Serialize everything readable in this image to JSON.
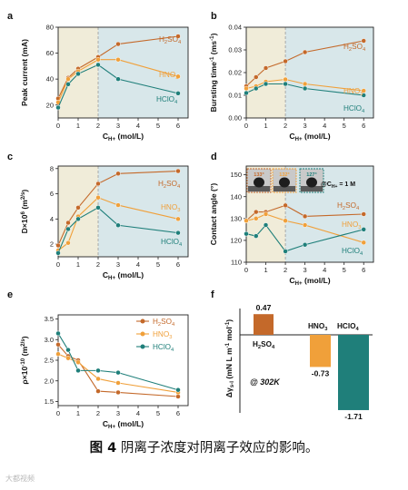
{
  "colors": {
    "H2SO4": "#c4692a",
    "HNO3": "#f0a03a",
    "HClO4": "#1f7f7a",
    "bg_left": "#f0ecd9",
    "bg_right": "#d8e7ea"
  },
  "caption": {
    "prefix": "图 4",
    "text": "阴离子浓度对阴离子效应的影响。"
  },
  "watermark": "大都视频",
  "chart_data": [
    {
      "panel": "a",
      "type": "line",
      "xlabel": "C_H+ (mol/L)",
      "ylabel": "Peak current (mA)",
      "xlim": [
        0,
        6.5
      ],
      "ylim": [
        10,
        80
      ],
      "xticks": [
        0,
        1,
        2,
        3,
        4,
        5,
        6
      ],
      "yticks": [
        20,
        40,
        60,
        80
      ],
      "series": [
        {
          "name": "H2SO4",
          "x": [
            0,
            0.5,
            1,
            2,
            3,
            6
          ],
          "values": [
            25,
            41,
            48,
            57,
            67,
            73
          ]
        },
        {
          "name": "HNO3",
          "x": [
            0,
            0.5,
            1,
            2,
            3,
            6
          ],
          "values": [
            22,
            40,
            46,
            55,
            55,
            42
          ]
        },
        {
          "name": "HClO4",
          "x": [
            0,
            0.5,
            1,
            2,
            3,
            6
          ],
          "values": [
            18,
            36,
            44,
            51,
            40,
            29
          ]
        }
      ]
    },
    {
      "panel": "b",
      "type": "line",
      "xlabel": "C_H+ (mol/L)",
      "ylabel": "Bursting time^-1 (ms^-1)",
      "xlim": [
        0,
        6.5
      ],
      "ylim": [
        0.0,
        0.04
      ],
      "xticks": [
        0,
        1,
        2,
        3,
        4,
        5,
        6
      ],
      "yticks": [
        0.0,
        0.01,
        0.02,
        0.03,
        0.04
      ],
      "yticklabels": [
        "0.00",
        "0.01",
        "0.02",
        "0.03",
        "0.04"
      ],
      "series": [
        {
          "name": "H2SO4",
          "x": [
            0,
            0.5,
            1,
            2,
            3,
            6
          ],
          "values": [
            0.014,
            0.018,
            0.022,
            0.025,
            0.029,
            0.034
          ]
        },
        {
          "name": "HNO3",
          "x": [
            0,
            0.5,
            1,
            2,
            3,
            6
          ],
          "values": [
            0.013,
            0.014,
            0.016,
            0.017,
            0.015,
            0.012
          ]
        },
        {
          "name": "HClO4",
          "x": [
            0,
            0.5,
            1,
            2,
            3,
            6
          ],
          "values": [
            0.011,
            0.013,
            0.015,
            0.015,
            0.013,
            0.01
          ]
        }
      ]
    },
    {
      "panel": "c",
      "type": "line",
      "xlabel": "C_H+ (mol/L)",
      "ylabel": "D×10^6 (m^2/s)",
      "xlim": [
        0,
        6.5
      ],
      "ylim": [
        1,
        8.2
      ],
      "xticks": [
        0,
        1,
        2,
        3,
        4,
        5,
        6
      ],
      "yticks": [
        2,
        4,
        6,
        8
      ],
      "series": [
        {
          "name": "H2SO4",
          "x": [
            0,
            0.5,
            1,
            2,
            3,
            6
          ],
          "values": [
            1.9,
            3.7,
            4.9,
            6.8,
            7.6,
            7.8
          ]
        },
        {
          "name": "HNO3",
          "x": [
            0,
            0.5,
            1,
            2,
            3,
            6
          ],
          "values": [
            1.5,
            2.1,
            4.2,
            5.7,
            5.1,
            4.0
          ]
        },
        {
          "name": "HClO4",
          "x": [
            0,
            0.5,
            1,
            2,
            3,
            6
          ],
          "values": [
            1.3,
            3.2,
            4.0,
            4.9,
            3.5,
            2.9
          ]
        }
      ]
    },
    {
      "panel": "d",
      "type": "line",
      "xlabel": "C_H+ (mol/L)",
      "ylabel": "Contact angle (°)",
      "xlim": [
        0,
        6.5
      ],
      "ylim": [
        110,
        154
      ],
      "xticks": [
        0,
        1,
        2,
        3,
        4,
        5,
        6
      ],
      "yticks": [
        110,
        120,
        130,
        140,
        150
      ],
      "inset_angles": [
        "133°",
        "132°",
        "127°"
      ],
      "inset_label": "@C_H+ = 1 M",
      "series": [
        {
          "name": "H2SO4",
          "x": [
            0,
            0.5,
            1,
            2,
            3,
            6
          ],
          "values": [
            129,
            133,
            133,
            136,
            131,
            132
          ]
        },
        {
          "name": "HNO3",
          "x": [
            0,
            0.5,
            1,
            2,
            3,
            6
          ],
          "values": [
            129,
            130,
            132,
            129,
            127,
            119
          ]
        },
        {
          "name": "HClO4",
          "x": [
            0,
            0.5,
            1,
            2,
            3,
            6
          ],
          "values": [
            123,
            122,
            127,
            115,
            118,
            125
          ]
        }
      ]
    },
    {
      "panel": "e",
      "type": "line",
      "xlabel": "C_H+ (mol/L)",
      "ylabel": "ρ×10^-10 (m^2/s)",
      "xlim": [
        0,
        6.5
      ],
      "ylim": [
        1.4,
        3.6
      ],
      "xticks": [
        0,
        1,
        2,
        3,
        4,
        5,
        6
      ],
      "yticks": [
        1.5,
        2.0,
        2.5,
        3.0,
        3.5
      ],
      "yticklabels": [
        "1.5",
        "2.0",
        "2.5",
        "3.0",
        "3.5"
      ],
      "series": [
        {
          "name": "H2SO4",
          "x": [
            0,
            0.5,
            1,
            2,
            3,
            6
          ],
          "values": [
            2.88,
            2.6,
            2.5,
            1.75,
            1.72,
            1.62
          ]
        },
        {
          "name": "HNO3",
          "x": [
            0,
            0.5,
            1,
            2,
            3,
            6
          ],
          "values": [
            2.65,
            2.55,
            2.45,
            2.05,
            1.95,
            1.72
          ]
        },
        {
          "name": "HClO4",
          "x": [
            0,
            0.5,
            1,
            2,
            3,
            6
          ],
          "values": [
            3.15,
            2.75,
            2.25,
            2.25,
            2.2,
            1.78
          ]
        }
      ]
    },
    {
      "panel": "f",
      "type": "bar",
      "ylabel": "Δγ_s-l (mN L m^-1 mol^-1)",
      "categories": [
        "H2SO4",
        "HNO3",
        "HClO4"
      ],
      "values": [
        0.47,
        -0.73,
        -1.71
      ],
      "value_labels": [
        "0.47",
        "-0.73",
        "-1.71"
      ],
      "annotation": "@ 302K"
    }
  ]
}
